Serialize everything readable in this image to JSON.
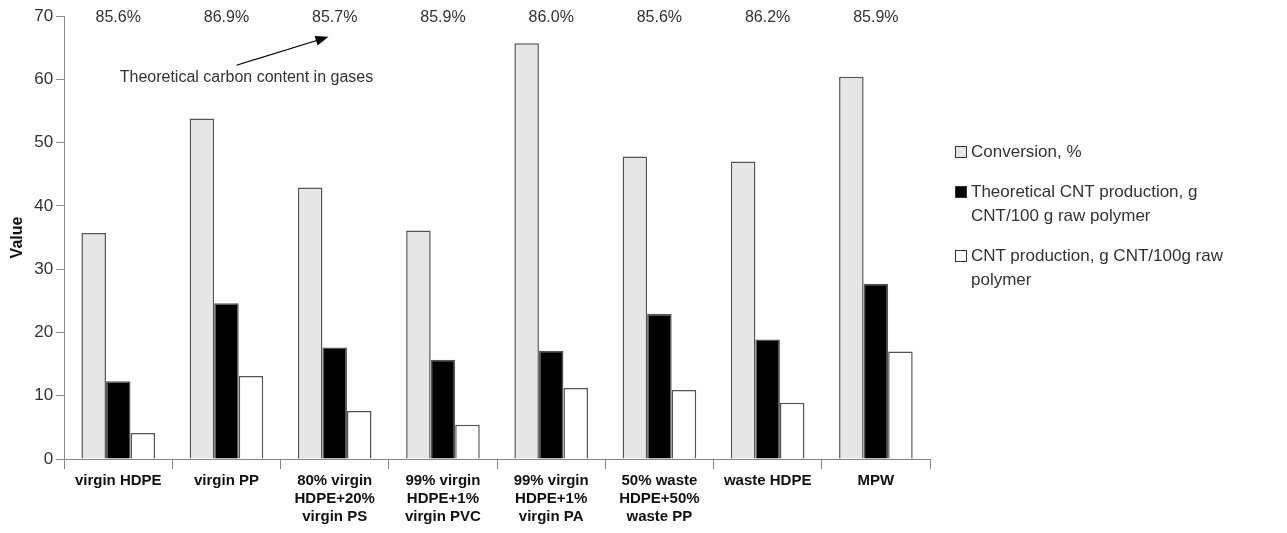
{
  "chart_data": {
    "type": "bar",
    "ylabel": "Value",
    "categories": [
      "virgin HDPE",
      "virgin PP",
      "80% virgin HDPE+20% virgin PS",
      "99% virgin HDPE+1% virgin PVC",
      "99% virgin HDPE+1% virgin PA",
      "50% waste HDPE+50% waste PP",
      "waste HDPE",
      "MPW"
    ],
    "series": [
      {
        "name": "Conversion, %",
        "color": "#e6e6e6",
        "values": [
          35.7,
          53.8,
          42.9,
          36.1,
          65.7,
          47.8,
          47.0,
          60.4
        ]
      },
      {
        "name": "Theoretical CNT production, g CNT/100 g raw polymer",
        "color": "#000000",
        "values": [
          12.3,
          24.6,
          17.6,
          15.7,
          17.1,
          22.9,
          18.9,
          27.7
        ]
      },
      {
        "name": "CNT production, g CNT/100g raw polymer",
        "color": "#ffffff",
        "values": [
          4.1,
          13.1,
          7.6,
          5.4,
          11.2,
          10.9,
          8.9,
          17.0
        ]
      }
    ],
    "ylim": [
      0,
      70
    ],
    "yticks": [
      0,
      10,
      20,
      30,
      40,
      50,
      60,
      70
    ],
    "grid": false,
    "legend": "right",
    "annotations": [
      "85.6%",
      "86.9%",
      "85.7%",
      "85.9%",
      "86.0%",
      "85.6%",
      "86.2%",
      "85.9%",
      "Theoretical carbon content in gases"
    ]
  }
}
